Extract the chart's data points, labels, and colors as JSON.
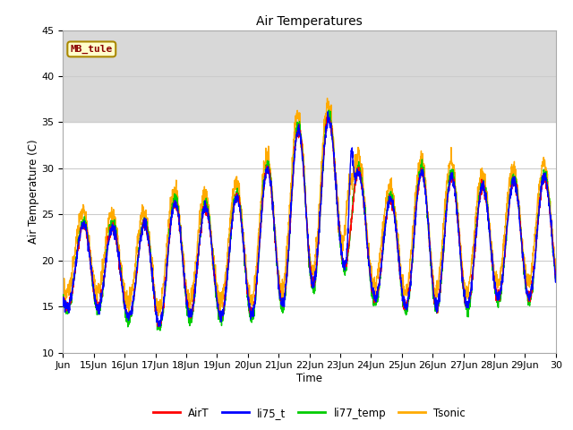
{
  "title": "Air Temperatures",
  "xlabel": "Time",
  "ylabel": "Air Temperature (C)",
  "ylim": [
    10,
    45
  ],
  "site_label": "MB_tule",
  "xtick_labels": [
    "Jun",
    "15Jun",
    "16Jun",
    "17Jun",
    "18Jun",
    "19Jun",
    "20Jun",
    "21Jun",
    "22Jun",
    "23Jun",
    "24Jun",
    "25Jun",
    "26Jun",
    "27Jun",
    "28Jun",
    "29Jun",
    "30"
  ],
  "shaded_band": [
    35,
    45
  ],
  "line_colors": {
    "AirT": "#ff0000",
    "li75_t": "#0000ff",
    "li77_temp": "#00cc00",
    "Tsonic": "#ffaa00"
  },
  "line_width": 1.0,
  "fig_bg": "#ffffff",
  "plot_bg": "#ffffff"
}
